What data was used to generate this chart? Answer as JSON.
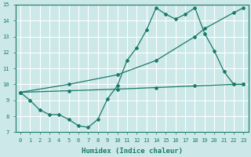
{
  "xlabel": "Humidex (Indice chaleur)",
  "bg_color": "#cce8e8",
  "grid_color": "#ffffff",
  "line_color": "#1a7a6a",
  "xlim": [
    -0.5,
    23.5
  ],
  "ylim": [
    7,
    15
  ],
  "xticks": [
    0,
    1,
    2,
    3,
    4,
    5,
    6,
    7,
    8,
    9,
    10,
    11,
    12,
    13,
    14,
    15,
    16,
    17,
    18,
    19,
    20,
    21,
    22,
    23
  ],
  "yticks": [
    7,
    8,
    9,
    10,
    11,
    12,
    13,
    14,
    15
  ],
  "main_x": [
    0,
    1,
    2,
    3,
    4,
    5,
    6,
    7,
    8,
    9,
    10,
    11,
    12,
    13,
    14,
    15,
    16,
    17,
    18,
    19,
    20,
    21,
    22,
    23
  ],
  "main_y": [
    9.5,
    9.0,
    8.4,
    8.1,
    8.1,
    7.8,
    7.4,
    7.3,
    7.8,
    9.1,
    9.9,
    11.5,
    12.3,
    13.4,
    14.8,
    14.4,
    14.1,
    14.4,
    14.8,
    13.2,
    12.1,
    10.8,
    10.0,
    10.0
  ],
  "diag1_x": [
    0,
    5,
    10,
    14,
    18,
    19,
    22,
    23
  ],
  "diag1_y": [
    9.5,
    10.0,
    10.6,
    11.5,
    13.0,
    13.5,
    14.5,
    14.8
  ],
  "diag2_x": [
    0,
    5,
    10,
    14,
    18,
    22,
    23
  ],
  "diag2_y": [
    9.5,
    9.6,
    9.7,
    9.8,
    9.9,
    10.0,
    10.0
  ]
}
